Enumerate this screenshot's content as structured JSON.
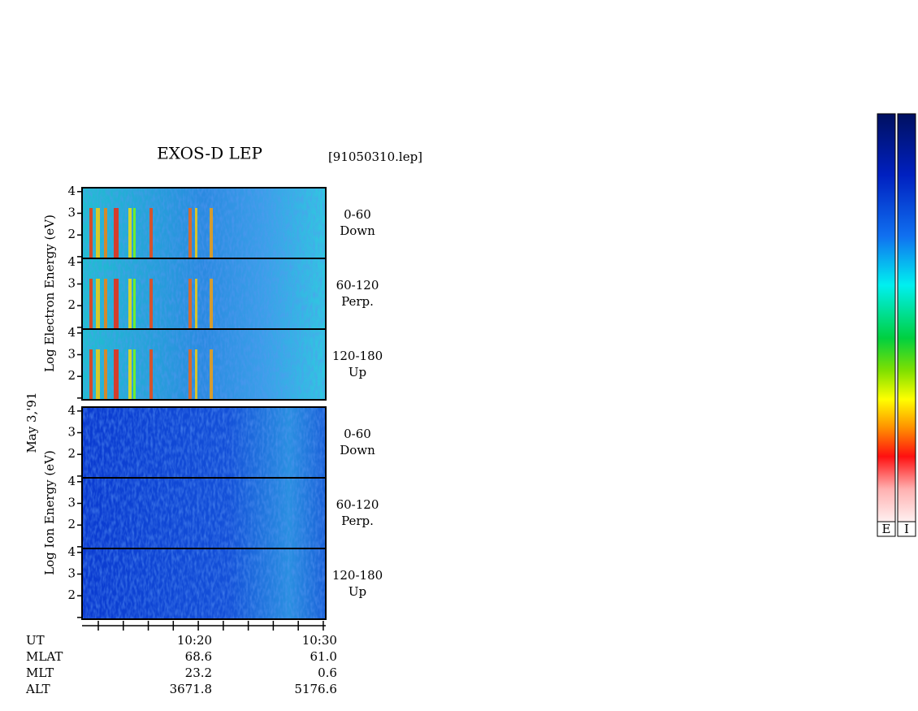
{
  "title": "EXOS-D LEP",
  "file": "[91050310.lep]",
  "date": "May  3,'91",
  "groups": [
    {
      "ylabel": "Log  Electron  Energy (eV)",
      "panels": [
        {
          "angle": "0-60",
          "dir": "Down"
        },
        {
          "angle": "60-120",
          "dir": "Perp."
        },
        {
          "angle": "120-180",
          "dir": "Up"
        }
      ]
    },
    {
      "ylabel": "Log  Ion  Energy (eV)",
      "panels": [
        {
          "angle": "0-60",
          "dir": "Down"
        },
        {
          "angle": "60-120",
          "dir": "Perp."
        },
        {
          "angle": "120-180",
          "dir": "Up"
        }
      ]
    }
  ],
  "ylim": [
    0.92,
    4.18
  ],
  "yticks": [
    {
      "value": 1,
      "label": null
    },
    2,
    3,
    4
  ],
  "xlim": [
    610.7,
    630.2
  ],
  "xticks": [
    {
      "value": 612,
      "label": null
    },
    {
      "value": 614,
      "label": null
    },
    {
      "value": 616,
      "label": null
    },
    {
      "value": 618,
      "label": null
    },
    {
      "value": 620,
      "label": "10:20"
    },
    {
      "value": 622,
      "label": null
    },
    {
      "value": 624,
      "label": null
    },
    {
      "value": 626,
      "label": null
    },
    {
      "value": 628,
      "label": null
    },
    {
      "value": 630,
      "label": "10:30"
    }
  ],
  "time_label": "UT",
  "ephemeris": [
    {
      "name": "MLAT",
      "values": [
        "68.6",
        "61.0"
      ]
    },
    {
      "name": "MLT",
      "values": [
        "23.2",
        "0.6"
      ]
    },
    {
      "name": "ALT",
      "values": [
        "3671.8",
        "5176.6"
      ]
    }
  ],
  "colorbars": [
    "E",
    "I"
  ]
}
